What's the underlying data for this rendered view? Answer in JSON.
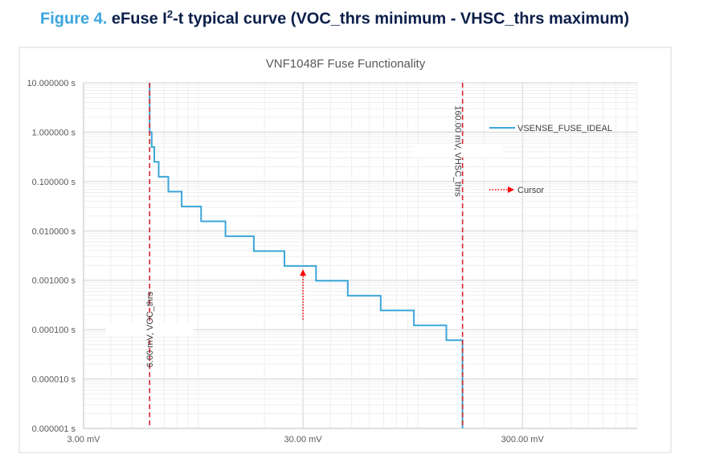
{
  "caption": {
    "figure_label": "Figure 4.",
    "text_before_sup": "eFuse I",
    "sup": "2",
    "text_after_sup": "-t typical curve (VOC_thrs minimum - VHSC_thrs maximum)"
  },
  "colors": {
    "caption_label": "#3aa6dd",
    "caption_text": "#0a1e4a",
    "series": "#3ca6d8",
    "marker_lines": "#d9232e",
    "cursor": "#ff0000",
    "grid": "#d9d9d9"
  },
  "chart_data": {
    "type": "line",
    "title": "VNF1048F Fuse Functionality",
    "x_scale": "log",
    "y_scale": "log",
    "xlim": [
      3,
      1000
    ],
    "ylim": [
      1e-06,
      10
    ],
    "x_unit": "mV",
    "y_unit": "s",
    "x_ticks": [
      {
        "value": 3,
        "label": "3.00 mV"
      },
      {
        "value": 30,
        "label": "30.00 mV"
      },
      {
        "value": 300,
        "label": "300.00 mV"
      }
    ],
    "y_ticks": [
      {
        "value": 10,
        "label": "10.000000 s"
      },
      {
        "value": 1,
        "label": "1.000000 s"
      },
      {
        "value": 0.1,
        "label": "0.100000 s"
      },
      {
        "value": 0.01,
        "label": "0.010000 s"
      },
      {
        "value": 0.001,
        "label": "0.001000 s"
      },
      {
        "value": 0.0001,
        "label": "0.000100 s"
      },
      {
        "value": 1e-05,
        "label": "0.000010 s"
      },
      {
        "value": 1e-06,
        "label": "0.000001 s"
      }
    ],
    "grid": true,
    "legend_position": "right",
    "series": [
      {
        "name": "VSENSE_FUSE_IDEAL",
        "style": "step",
        "points": [
          [
            6.0,
            10
          ],
          [
            6.0,
            1
          ],
          [
            6.13,
            1
          ],
          [
            6.13,
            0.5
          ],
          [
            6.3,
            0.5
          ],
          [
            6.3,
            0.25
          ],
          [
            6.6,
            0.25
          ],
          [
            6.6,
            0.125
          ],
          [
            7.3,
            0.125
          ],
          [
            7.3,
            0.0625
          ],
          [
            8.4,
            0.0625
          ],
          [
            8.4,
            0.03125
          ],
          [
            10.3,
            0.03125
          ],
          [
            10.3,
            0.015625
          ],
          [
            13.3,
            0.015625
          ],
          [
            13.3,
            0.0078125
          ],
          [
            17.9,
            0.0078125
          ],
          [
            17.9,
            0.00390625
          ],
          [
            24.7,
            0.00390625
          ],
          [
            24.7,
            0.001953
          ],
          [
            34.4,
            0.001953
          ],
          [
            34.4,
            0.000977
          ],
          [
            48,
            0.000977
          ],
          [
            48,
            0.000488
          ],
          [
            67.8,
            0.000488
          ],
          [
            67.8,
            0.000244
          ],
          [
            96,
            0.000244
          ],
          [
            96,
            0.000122
          ],
          [
            135,
            0.000122
          ],
          [
            135,
            6.1e-05
          ],
          [
            160,
            6.1e-05
          ],
          [
            160,
            1e-06
          ]
        ]
      }
    ],
    "markers": [
      {
        "x": 6.0,
        "label": "6.00 mV, VOC_thrs"
      },
      {
        "x": 160.0,
        "label": "160.00 mV, VHSC_thrs"
      }
    ],
    "cursor": {
      "name": "Cursor",
      "x": 30,
      "y_from": 0.00016,
      "y_to": 0.0016
    }
  }
}
